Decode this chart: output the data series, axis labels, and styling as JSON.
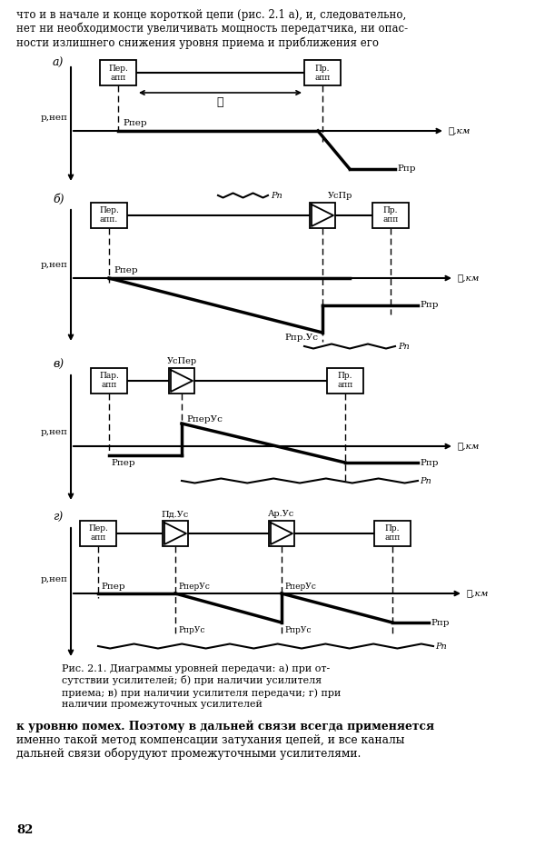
{
  "bg_color": "#ffffff",
  "top_text_lines": [
    "что и в начале и конце короткой цепи (рис. 2.1 а), и, следовательно,",
    "нет ни необходимости увеличивать мощность передатчика, ни опас-",
    "ности излишнего снижения уровня приема и приближения его"
  ],
  "caption_lines": [
    "Рис. 2.1. Диаграммы уровней передачи: а) при от-",
    "сутствии усилителей; б) при наличии усилителя",
    "приема; в) при наличии усилителя передачи; г) при",
    "наличии промежуточных усилителей"
  ],
  "bottom_lines": [
    "к уровню помех. Поэтому в дальней связи всегда применяется",
    "именно такой метод компенсации затухания цепей, и все каналы",
    "дальней связи оборудуют промежуточными усилителями."
  ],
  "page_num": "82"
}
